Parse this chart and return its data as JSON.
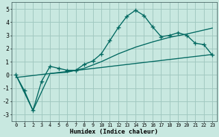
{
  "xlabel": "Humidex (Indice chaleur)",
  "background_color": "#c8e8e0",
  "grid_color": "#a0c8c0",
  "line_color": "#006860",
  "xlim": [
    -0.5,
    23.5
  ],
  "ylim": [
    -3.5,
    5.5
  ],
  "xticks": [
    0,
    1,
    2,
    3,
    4,
    5,
    6,
    7,
    8,
    9,
    10,
    11,
    12,
    13,
    14,
    15,
    16,
    17,
    18,
    19,
    20,
    21,
    22,
    23
  ],
  "yticks": [
    -3,
    -2,
    -1,
    0,
    1,
    2,
    3,
    4,
    5
  ],
  "line1_x": [
    0,
    1,
    2,
    3,
    4,
    5,
    6,
    7,
    8,
    9,
    10,
    11,
    12,
    13,
    14,
    15,
    16,
    17,
    18,
    19,
    20,
    21,
    22,
    23
  ],
  "line1_y": [
    0.0,
    -1.2,
    -2.7,
    -0.5,
    0.65,
    0.5,
    0.35,
    0.35,
    0.8,
    1.05,
    1.6,
    2.6,
    3.6,
    4.45,
    4.9,
    4.5,
    3.65,
    2.9,
    3.0,
    3.2,
    3.0,
    2.4,
    2.3,
    1.5
  ],
  "line2_x": [
    0,
    2,
    4,
    6,
    8,
    10,
    12,
    14,
    16,
    18,
    20,
    22,
    23
  ],
  "line2_y": [
    0.0,
    -2.7,
    0.1,
    0.2,
    0.5,
    1.0,
    1.6,
    2.1,
    2.5,
    2.85,
    3.1,
    3.4,
    3.55
  ],
  "line3_x": [
    0,
    23
  ],
  "line3_y": [
    -0.2,
    1.55
  ]
}
